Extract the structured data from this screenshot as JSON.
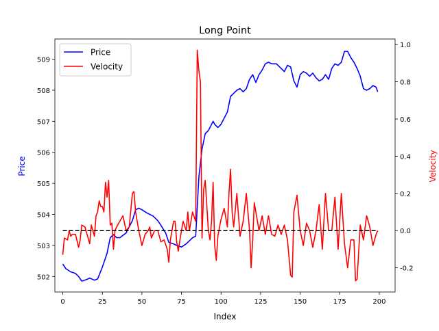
{
  "chart_data": {
    "type": "line",
    "title": "Long Point",
    "xlabel": "Index",
    "ylabel_left": "Price",
    "ylabel_right": "Velocity",
    "xlim": [
      -5,
      210
    ],
    "ylim_left": [
      501.5,
      509.65
    ],
    "ylim_right": [
      -0.33,
      1.03
    ],
    "x_ticks": [
      0,
      25,
      50,
      75,
      100,
      125,
      150,
      175,
      200
    ],
    "y_ticks_left": [
      502,
      503,
      504,
      505,
      506,
      507,
      508,
      509
    ],
    "y_ticks_right": [
      -0.2,
      0.0,
      0.2,
      0.4,
      0.6,
      0.8,
      1.0
    ],
    "legend": {
      "position": "upper-left",
      "entries": [
        "Price",
        "Velocity"
      ]
    },
    "colors": {
      "price": "#0000ff",
      "velocity": "#ff0000",
      "zero_line": "#000000"
    },
    "reference_line": {
      "axis": "right",
      "y": 0.0,
      "x_range": [
        0,
        199
      ],
      "style": "dashed"
    },
    "series": [
      {
        "name": "Price",
        "axis": "left",
        "x": [
          0,
          2,
          5,
          8,
          10,
          12,
          15,
          17,
          20,
          22,
          25,
          28,
          30,
          32,
          34,
          36,
          40,
          44,
          46,
          48,
          50,
          53,
          55,
          57,
          60,
          62,
          65,
          67,
          70,
          72,
          75,
          78,
          80,
          82,
          84,
          86,
          88,
          90,
          92,
          94,
          95,
          96,
          98,
          100,
          102,
          104,
          106,
          108,
          110,
          112,
          114,
          116,
          118,
          120,
          122,
          124,
          126,
          128,
          130,
          132,
          135,
          138,
          140,
          142,
          144,
          146,
          148,
          150,
          152,
          154,
          156,
          158,
          160,
          162,
          164,
          166,
          168,
          170,
          172,
          174,
          176,
          178,
          180,
          182,
          184,
          186,
          188,
          190,
          192,
          194,
          196,
          198,
          199
        ],
        "values": [
          502.4,
          502.25,
          502.15,
          502.1,
          502.0,
          501.85,
          501.9,
          501.95,
          501.88,
          501.92,
          502.3,
          502.75,
          503.25,
          503.35,
          503.25,
          503.25,
          503.4,
          503.8,
          504.15,
          504.2,
          504.15,
          504.05,
          504.0,
          503.95,
          503.8,
          503.65,
          503.4,
          503.1,
          503.05,
          503.0,
          502.95,
          503.05,
          503.15,
          503.25,
          503.3,
          505.2,
          506.1,
          506.6,
          506.7,
          506.9,
          507.0,
          506.9,
          506.8,
          506.9,
          507.1,
          507.3,
          507.8,
          507.9,
          508.0,
          508.05,
          507.95,
          508.05,
          508.35,
          508.5,
          508.25,
          508.5,
          508.65,
          508.85,
          508.9,
          508.85,
          508.85,
          508.7,
          508.6,
          508.8,
          508.75,
          508.3,
          508.1,
          508.5,
          508.6,
          508.55,
          508.45,
          508.55,
          508.4,
          508.3,
          508.35,
          508.5,
          508.35,
          508.7,
          508.85,
          508.8,
          508.9,
          509.25,
          509.25,
          509.05,
          508.9,
          508.7,
          508.45,
          508.05,
          508.0,
          508.05,
          508.15,
          508.1,
          507.95
        ]
      },
      {
        "name": "Velocity",
        "axis": "right",
        "x": [
          0,
          1,
          3,
          4,
          5,
          6,
          8,
          10,
          11,
          12,
          14,
          15,
          17,
          18,
          20,
          21,
          22,
          23,
          24,
          25,
          26,
          27,
          28,
          29,
          30,
          31,
          32,
          33,
          34,
          36,
          38,
          40,
          42,
          44,
          45,
          46,
          48,
          50,
          52,
          54,
          55,
          56,
          58,
          60,
          62,
          64,
          66,
          67,
          68,
          70,
          71,
          72,
          73,
          74,
          76,
          78,
          79,
          80,
          82,
          84,
          85,
          86,
          87,
          88,
          89,
          90,
          92,
          93,
          94,
          95,
          96,
          97,
          98,
          100,
          102,
          104,
          105,
          106,
          107,
          108,
          110,
          112,
          114,
          116,
          118,
          119,
          120,
          121,
          122,
          124,
          126,
          128,
          130,
          132,
          134,
          136,
          138,
          140,
          142,
          144,
          145,
          146,
          148,
          150,
          152,
          154,
          156,
          158,
          160,
          162,
          164,
          166,
          168,
          170,
          172,
          174,
          176,
          178,
          180,
          182,
          184,
          185,
          186,
          188,
          190,
          192,
          194,
          196,
          198,
          199
        ],
        "values": [
          -0.13,
          -0.04,
          -0.05,
          0.0,
          -0.03,
          -0.02,
          -0.02,
          -0.09,
          -0.05,
          0.03,
          0.02,
          -0.01,
          -0.07,
          0.03,
          -0.03,
          0.08,
          0.1,
          0.16,
          0.13,
          0.13,
          0.1,
          0.26,
          0.18,
          0.27,
          0.03,
          0.04,
          -0.1,
          0.0,
          0.02,
          0.05,
          0.08,
          0.0,
          0.02,
          0.2,
          0.21,
          0.1,
          0.0,
          -0.08,
          -0.02,
          0.0,
          0.02,
          -0.04,
          0.0,
          0.0,
          -0.06,
          -0.05,
          -0.1,
          -0.17,
          -0.05,
          0.05,
          0.05,
          -0.06,
          -0.11,
          -0.05,
          0.05,
          0.0,
          0.1,
          0.0,
          0.1,
          0.05,
          0.97,
          0.86,
          0.8,
          -0.04,
          0.22,
          0.27,
          0.0,
          -0.05,
          0.05,
          0.26,
          -0.08,
          -0.16,
          -0.03,
          0.06,
          0.12,
          0.02,
          0.2,
          0.33,
          0.1,
          0.02,
          0.2,
          -0.03,
          0.05,
          0.2,
          0.0,
          -0.2,
          -0.05,
          0.15,
          0.1,
          0.0,
          0.08,
          -0.02,
          0.08,
          -0.02,
          -0.03,
          0.03,
          -0.02,
          0.03,
          -0.05,
          -0.24,
          -0.25,
          0.1,
          0.19,
          0.0,
          -0.08,
          0.04,
          0.0,
          -0.09,
          0.0,
          0.14,
          -0.1,
          0.2,
          0.0,
          0.0,
          0.18,
          -0.1,
          0.2,
          -0.07,
          -0.2,
          -0.05,
          -0.05,
          -0.27,
          -0.26,
          0.03,
          -0.05,
          0.08,
          0.02,
          -0.08,
          -0.02,
          0.0
        ]
      }
    ]
  }
}
